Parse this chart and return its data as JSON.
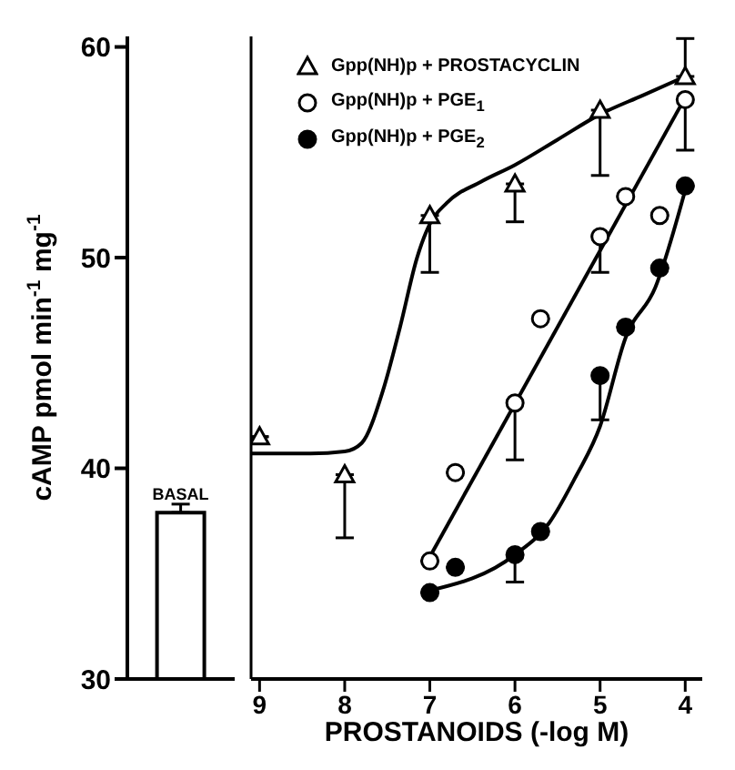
{
  "chart_data": [
    {
      "type": "bar",
      "categories": [
        "BASAL"
      ],
      "values": [
        37.9
      ],
      "errors": [
        [
          37.9,
          38.3
        ]
      ],
      "color": "#ffffff",
      "ylim": [
        30,
        60.5
      ],
      "yticks": [
        30,
        40,
        50,
        60
      ],
      "ylabel": "cAMP pmol min$^{-1}$ mg$^{-1}$"
    },
    {
      "type": "scatter",
      "xlabel": "PROSTANOIDS (-log M)",
      "xlim": [
        9.1,
        3.8
      ],
      "xticks": [
        9,
        8,
        7,
        6,
        5,
        4
      ],
      "ylim": [
        30,
        60.5
      ],
      "yticks": [
        30,
        40,
        50,
        60
      ],
      "tick_labels": "x",
      "legend": "top left",
      "series": [
        {
          "type": "scatter",
          "name": "Gpp(NH)p + PROSTACYCLIN",
          "color": "#ffffff",
          "marker": "triangle",
          "x": [
            9,
            8,
            7,
            6,
            5,
            4
          ],
          "values": [
            41.5,
            39.7,
            52.0,
            53.5,
            57.0,
            58.6
          ],
          "errors": [
            null,
            [
              36.7,
              39.7
            ],
            [
              49.3,
              52.0
            ],
            [
              51.7,
              53.5
            ],
            [
              53.9,
              57.0
            ],
            [
              58.6,
              60.4
            ]
          ]
        },
        {
          "type": "scatter",
          "name": "Gpp(NH)p + PGE$_{1}$",
          "color": "#ffffff",
          "marker": "circle",
          "x": [
            7,
            6.7,
            6,
            5.7,
            5,
            4.7,
            4.3,
            4
          ],
          "values": [
            35.6,
            39.8,
            43.1,
            47.1,
            51.0,
            52.9,
            52.0,
            57.5
          ],
          "errors": [
            null,
            null,
            [
              40.4,
              43.1
            ],
            null,
            [
              49.3,
              51.0
            ],
            null,
            null,
            [
              55.1,
              57.5
            ]
          ]
        },
        {
          "type": "scatter",
          "name": "Gpp(NH)p + PGE$_{2}$",
          "color": "#000000",
          "marker": "circle",
          "x": [
            7,
            6.7,
            6,
            5.7,
            5,
            4.7,
            4.3,
            4
          ],
          "values": [
            34.1,
            35.3,
            35.9,
            37.0,
            44.4,
            46.7,
            49.5,
            53.4
          ],
          "errors": [
            null,
            null,
            [
              34.6,
              35.9
            ],
            null,
            [
              42.3,
              44.4
            ],
            null,
            null,
            null
          ]
        },
        {
          "type": "line",
          "color": "#000000",
          "marker": "none",
          "x": [
            9.1,
            8.4,
            8.0,
            7.8,
            7.55,
            7.35,
            7.15,
            7.0,
            6.8,
            6.4,
            6.0,
            5.5,
            5.0,
            4.5,
            4.0
          ],
          "values": [
            40.7,
            40.7,
            40.8,
            41.2,
            43.7,
            46.7,
            50.0,
            51.6,
            52.6,
            53.6,
            54.4,
            55.6,
            56.8,
            57.7,
            58.6
          ]
        },
        {
          "type": "line",
          "color": "#000000",
          "marker": "none",
          "x": [
            7,
            4
          ],
          "values": [
            35.8,
            57.6
          ]
        },
        {
          "type": "line",
          "color": "#000000",
          "marker": "none",
          "x": [
            7,
            6,
            5.6,
            5.3,
            5.0,
            4.7,
            4.35,
            4.0
          ],
          "values": [
            34.2,
            35.9,
            37.4,
            39.5,
            42.0,
            46.2,
            48.6,
            53.2
          ]
        }
      ]
    }
  ]
}
